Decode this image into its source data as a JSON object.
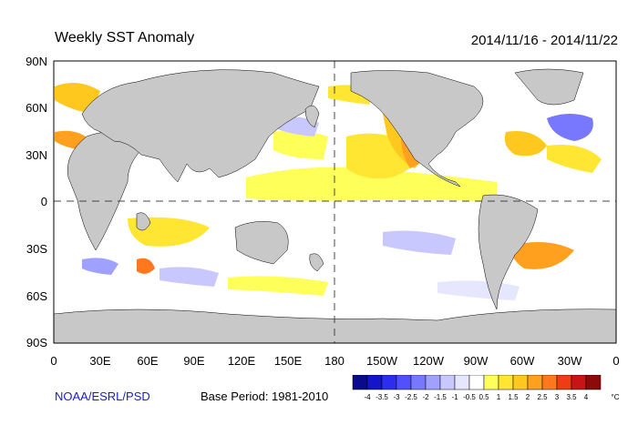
{
  "title": "Weekly SST Anomaly",
  "date_range": "2014/11/16 - 2014/11/22",
  "credit": "NOAA/ESRL/PSD",
  "base_period": "Base Period: 1981-2010",
  "lat_labels": [
    "90N",
    "60N",
    "30N",
    "0",
    "30S",
    "60S",
    "90S"
  ],
  "lon_labels": [
    "0",
    "30E",
    "60E",
    "90E",
    "120E",
    "150E",
    "180",
    "150W",
    "120W",
    "90W",
    "60W",
    "30W",
    "0"
  ],
  "colorbar": {
    "unit": "°C",
    "tick_labels": [
      "-4",
      "-3.5",
      "-3",
      "-2.5",
      "-2",
      "-1.5",
      "-1",
      "-0.5",
      "0.5",
      "1",
      "1.5",
      "2",
      "2.5",
      "3",
      "3.5",
      "4"
    ],
    "colors": [
      "#0a0a8c",
      "#1414c8",
      "#2d2df0",
      "#5050ff",
      "#7878ff",
      "#a0a0ff",
      "#c8c8ff",
      "#e6e6ff",
      "#ffffff",
      "#ffff5a",
      "#ffe632",
      "#ffc81e",
      "#ffa01e",
      "#ff781e",
      "#f03c14",
      "#c81414",
      "#8c0a0a"
    ]
  },
  "colors": {
    "land": "#c8c8c8",
    "ocean": "#ffffff",
    "warm_anomaly": "#ffe632",
    "cool_anomaly": "#b4b4f0"
  }
}
